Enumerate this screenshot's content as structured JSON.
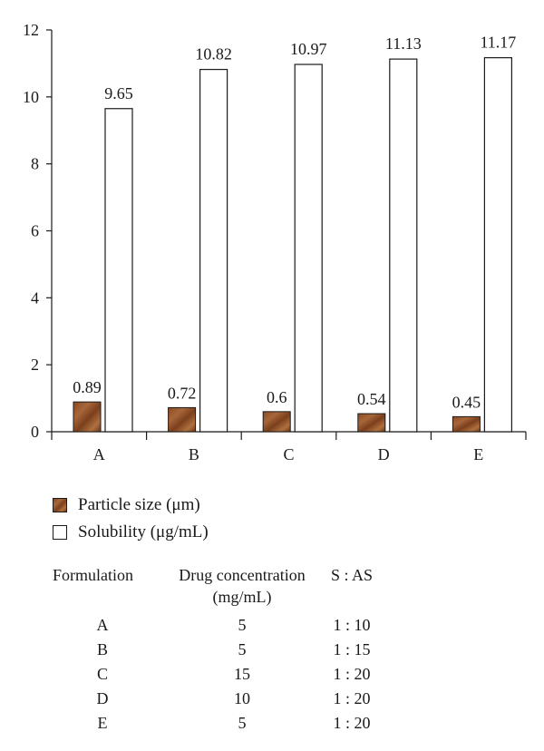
{
  "chart_data": {
    "type": "bar",
    "categories": [
      "A",
      "B",
      "C",
      "D",
      "E"
    ],
    "series": [
      {
        "name": "Particle size (μm)",
        "values": [
          0.89,
          0.72,
          0.6,
          0.54,
          0.45
        ],
        "color": "#8a4a22"
      },
      {
        "name": "Solubility (μg/mL)",
        "values": [
          9.65,
          10.82,
          10.97,
          11.13,
          11.17
        ],
        "color": "#ffffff"
      }
    ],
    "data_labels": [
      [
        "0.89",
        "0.72",
        "0.6",
        "0.54",
        "0.45"
      ],
      [
        "9.65",
        "10.82",
        "10.97",
        "11.13",
        "11.17"
      ]
    ],
    "yticks": [
      "0",
      "2",
      "4",
      "6",
      "8",
      "10",
      "12"
    ],
    "ylim": [
      0,
      12
    ],
    "title": "",
    "xlabel": "",
    "ylabel": "",
    "grid": false,
    "legend_position": "bottom-left"
  },
  "legend": {
    "particle": "Particle size (μm)",
    "solubility": "Solubility (μg/mL)"
  },
  "table": {
    "headers": {
      "formulation": "Formulation",
      "drug_line1": "Drug concentration",
      "drug_line2": "(mg/mL)",
      "ratio": "S : AS"
    },
    "rows": [
      {
        "formulation": "A",
        "drug": "5",
        "ratio": "1 : 10"
      },
      {
        "formulation": "B",
        "drug": "5",
        "ratio": "1 : 15"
      },
      {
        "formulation": "C",
        "drug": "15",
        "ratio": "1 : 20"
      },
      {
        "formulation": "D",
        "drug": "10",
        "ratio": "1 : 20"
      },
      {
        "formulation": "E",
        "drug": "5",
        "ratio": "1 : 20"
      }
    ]
  }
}
